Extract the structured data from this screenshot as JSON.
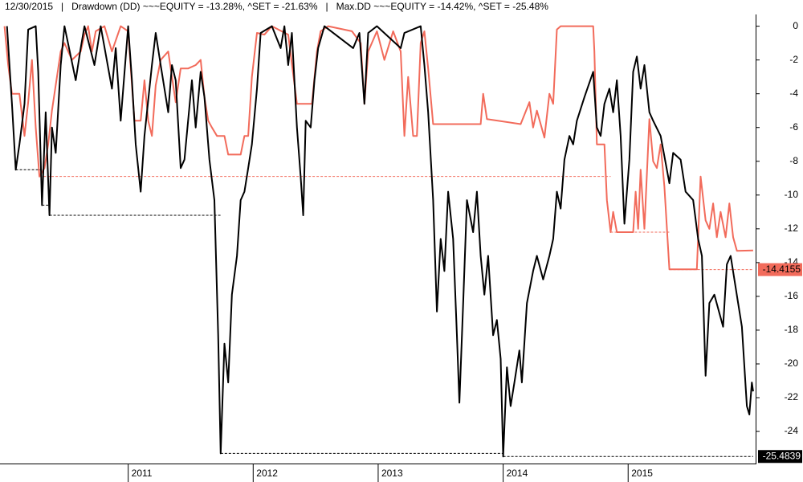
{
  "chart_data": {
    "type": "line",
    "title": "12/30/2015   |   Drawdown (DD) ~~~EQUITY = -13.28%, ^SET = -21.63%   |   Max.DD ~~~EQUITY = -14.42%, ^SET = -25.48%",
    "xlim": [
      2010.0,
      2016.02
    ],
    "xticks": [
      2011,
      2012,
      2013,
      2014,
      2015
    ],
    "ylim": [
      -25.9,
      0.6
    ],
    "yticks": [
      0,
      -2,
      -4,
      -6,
      -8,
      -10,
      -12,
      -14,
      -16,
      -18,
      -20,
      -22,
      -24
    ],
    "series": [
      {
        "color": "#f26b5b",
        "dashed": false,
        "x": [
          2010.01,
          2010.04,
          2010.07,
          2010.1,
          2010.13,
          2010.17,
          2010.2,
          2010.23,
          2010.26,
          2010.29,
          2010.33,
          2010.36,
          2010.39,
          2010.46,
          2010.49,
          2010.55,
          2010.62,
          2010.65,
          2010.68,
          2010.71,
          2010.74,
          2010.81,
          2010.87,
          2010.94,
          2011.0,
          2011.05,
          2011.1,
          2011.13,
          2011.16,
          2011.19,
          2011.22,
          2011.26,
          2011.32,
          2011.38,
          2011.42,
          2011.48,
          2011.54,
          2011.58,
          2011.61,
          2011.64,
          2011.67,
          2011.71,
          2011.77,
          2011.8,
          2011.9,
          2011.93,
          2011.96,
          2011.99,
          2012.03,
          2012.09,
          2012.15,
          2012.28,
          2012.35,
          2012.47,
          2012.51,
          2012.54,
          2012.6,
          2012.79,
          2012.86,
          2012.89,
          2012.92,
          2012.99,
          2013.05,
          2013.12,
          2013.18,
          2013.21,
          2013.24,
          2013.28,
          2013.31,
          2013.34,
          2013.37,
          2013.4,
          2013.44,
          2013.82,
          2013.84,
          2013.87,
          2014.14,
          2014.21,
          2014.24,
          2014.27,
          2014.33,
          2014.37,
          2014.4,
          2014.43,
          2014.46,
          2014.72,
          2014.73,
          2014.75,
          2014.81,
          2014.83,
          2014.86,
          2014.88,
          2014.91,
          2015.04,
          2015.06,
          2015.08,
          2015.1,
          2015.13,
          2015.17,
          2015.2,
          2015.23,
          2015.26,
          2015.29,
          2015.33,
          2015.55,
          2015.58,
          2015.62,
          2015.65,
          2015.68,
          2015.71,
          2015.74,
          2015.78,
          2015.81,
          2015.84,
          2015.87,
          2016.0
        ],
        "values": [
          0,
          -2.3,
          -4.0,
          -4.0,
          -4.0,
          -6.5,
          -4.5,
          -2.0,
          -6.0,
          -8.9,
          -8.4,
          -7.0,
          -5.0,
          -1.5,
          -1.0,
          -2.0,
          -1.5,
          -0.5,
          0,
          -1.5,
          -0.3,
          0,
          -1.5,
          0,
          -0.3,
          -5.6,
          -5.6,
          -3.2,
          -5.6,
          -6.5,
          -3.5,
          -2.0,
          -1.5,
          -4.5,
          -2.5,
          -2.5,
          -2.3,
          -2.0,
          -4.2,
          -5.6,
          -6.0,
          -6.5,
          -6.5,
          -7.6,
          -7.6,
          -6.5,
          -6.5,
          -3.0,
          -0.4,
          -0.5,
          0,
          -0.5,
          -4.6,
          -4.6,
          -1.5,
          -0.3,
          0,
          -0.3,
          -1.0,
          -4.6,
          -1.5,
          -0.3,
          -2.0,
          -0.3,
          -1.5,
          -6.5,
          -3.0,
          -6.5,
          -6.5,
          -1.0,
          -0.3,
          -2.5,
          -5.8,
          -5.8,
          -4.0,
          -5.5,
          -5.8,
          -4.5,
          -6.0,
          -5.0,
          -6.6,
          -4.0,
          -4.6,
          -0.2,
          0,
          0,
          -1.5,
          -7.0,
          -7.0,
          -10.3,
          -12.2,
          -11.0,
          -12.2,
          -12.2,
          -9.8,
          -12.0,
          -8.5,
          -12.0,
          -5.5,
          -8.0,
          -8.4,
          -7.0,
          -9.5,
          -14.4,
          -14.4,
          -8.9,
          -11.5,
          -12.0,
          -10.5,
          -12.5,
          -11.0,
          -12.5,
          -10.5,
          -12.5,
          -13.3,
          -13.28
        ]
      },
      {
        "color": "#000000",
        "dashed": false,
        "x": [
          2010.03,
          2010.07,
          2010.1,
          2010.13,
          2010.17,
          2010.2,
          2010.26,
          2010.28,
          2010.31,
          2010.34,
          2010.37,
          2010.39,
          2010.42,
          2010.46,
          2010.49,
          2010.58,
          2010.62,
          2010.65,
          2010.73,
          2010.78,
          2010.87,
          2010.9,
          2010.94,
          2011.0,
          2011.03,
          2011.06,
          2011.1,
          2011.13,
          2011.19,
          2011.22,
          2011.26,
          2011.32,
          2011.35,
          2011.38,
          2011.42,
          2011.45,
          2011.51,
          2011.54,
          2011.58,
          2011.61,
          2011.65,
          2011.69,
          2011.72,
          2011.74,
          2011.77,
          2011.8,
          2011.83,
          2011.87,
          2011.9,
          2011.93,
          2011.96,
          2011.99,
          2012.03,
          2012.06,
          2012.15,
          2012.22,
          2012.25,
          2012.28,
          2012.31,
          2012.35,
          2012.38,
          2012.4,
          2012.42,
          2012.46,
          2012.49,
          2012.52,
          2012.57,
          2012.8,
          2012.85,
          2012.89,
          2012.92,
          2012.99,
          2013.18,
          2013.21,
          2013.34,
          2013.37,
          2013.4,
          2013.44,
          2013.47,
          2013.5,
          2013.53,
          2013.56,
          2013.6,
          2013.63,
          2013.65,
          2013.68,
          2013.71,
          2013.76,
          2013.79,
          2013.82,
          2013.85,
          2013.88,
          2013.92,
          2013.95,
          2013.98,
          2014.0,
          2014.03,
          2014.06,
          2014.09,
          2014.13,
          2014.15,
          2014.19,
          2014.24,
          2014.27,
          2014.32,
          2014.37,
          2014.4,
          2014.43,
          2014.46,
          2014.49,
          2014.53,
          2014.56,
          2014.59,
          2014.65,
          2014.72,
          2014.75,
          2014.78,
          2014.81,
          2014.85,
          2014.88,
          2014.91,
          2014.94,
          2014.97,
          2015.01,
          2015.04,
          2015.07,
          2015.1,
          2015.13,
          2015.17,
          2015.2,
          2015.26,
          2015.33,
          2015.36,
          2015.42,
          2015.46,
          2015.52,
          2015.56,
          2015.59,
          2015.62,
          2015.65,
          2015.69,
          2015.76,
          2015.79,
          2015.82,
          2015.88,
          2015.91,
          2015.95,
          2015.97,
          2015.99,
          2016.0
        ],
        "values": [
          0,
          -4.6,
          -8.5,
          -7.0,
          -4.6,
          -0.2,
          0,
          -2.7,
          -10.6,
          -5.1,
          -11.2,
          -6.0,
          -7.5,
          -2.3,
          0,
          -3.2,
          -1.3,
          0,
          -2.3,
          0,
          -3.7,
          -1.3,
          -5.6,
          0,
          -3.2,
          -7.0,
          -9.8,
          -6.5,
          -2.3,
          -0.4,
          -2.3,
          -5.1,
          -2.3,
          -3.2,
          -8.4,
          -7.9,
          -3.2,
          -6.0,
          -2.7,
          -4.2,
          -7.9,
          -10.3,
          -18.3,
          -25.3,
          -18.8,
          -21.1,
          -15.9,
          -13.6,
          -10.3,
          -9.8,
          -8.4,
          -7.0,
          -3.7,
          -0.4,
          0,
          -1.3,
          0,
          -2.3,
          -0.4,
          -6.0,
          -8.9,
          -11.2,
          -5.6,
          -6.0,
          -3.2,
          -1.3,
          0,
          -1.3,
          -0.4,
          -4.6,
          -0.4,
          0,
          -1.3,
          -0.4,
          0,
          -2.3,
          -5.1,
          -10.3,
          -16.9,
          -12.6,
          -14.5,
          -9.8,
          -12.6,
          -18.3,
          -22.3,
          -16.4,
          -10.3,
          -12.2,
          -9.8,
          -13.6,
          -15.9,
          -13.6,
          -18.3,
          -17.4,
          -19.7,
          -25.4839,
          -20.2,
          -22.5,
          -21.1,
          -19.2,
          -21.1,
          -16.4,
          -14.5,
          -13.6,
          -15.0,
          -13.6,
          -12.6,
          -9.8,
          -10.8,
          -7.9,
          -6.5,
          -7.0,
          -5.6,
          -4.2,
          -2.7,
          -6.0,
          -6.5,
          -4.6,
          -3.7,
          -5.1,
          -3.2,
          -6.5,
          -11.7,
          -7.9,
          -2.7,
          -1.8,
          -3.7,
          -2.3,
          -5.1,
          -5.6,
          -6.5,
          -9.3,
          -7.5,
          -7.9,
          -9.8,
          -10.3,
          -12.6,
          -13.6,
          -20.7,
          -16.4,
          -15.9,
          -17.8,
          -14.1,
          -13.6,
          -16.4,
          -17.8,
          -22.5,
          -23.0,
          -21.1,
          -21.63
        ]
      },
      {
        "color": "#f26b5b",
        "dashed": true,
        "x": [
          2010.29,
          2014.86,
          2015.33,
          2016.0
        ],
        "values": [
          -8.9,
          -12.2,
          -14.4155,
          -14.4155
        ]
      },
      {
        "color": "#000000",
        "dashed": true,
        "x": [
          2010.1,
          2010.31,
          2010.37,
          2011.74,
          2014.0,
          2016.0
        ],
        "values": [
          -8.5,
          -10.6,
          -11.2,
          -25.3,
          -25.4839,
          -25.4839
        ]
      }
    ]
  }
}
